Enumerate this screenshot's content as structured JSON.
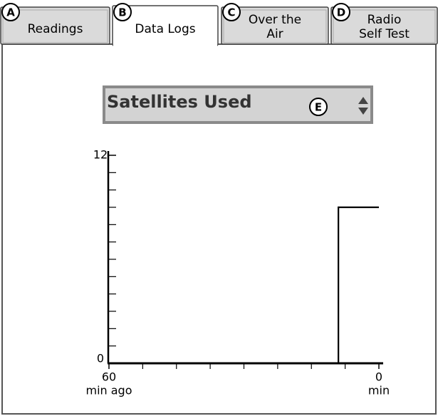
{
  "tabs": [
    {
      "callout": "A",
      "label_lines": [
        "Readings"
      ],
      "active": false
    },
    {
      "callout": "B",
      "label_lines": [
        "Data Logs"
      ],
      "active": true
    },
    {
      "callout": "C",
      "label_lines": [
        "Over the",
        "Air"
      ],
      "active": false
    },
    {
      "callout": "D",
      "label_lines": [
        "Radio",
        "Self Test"
      ],
      "active": false
    }
  ],
  "dropdown": {
    "label": "Satellites Used",
    "callout": "E"
  },
  "chart_data": {
    "type": "line",
    "x": [
      60,
      9,
      9,
      0
    ],
    "values": [
      0,
      0,
      9,
      9
    ],
    "color": "#000000",
    "xlim": [
      60,
      0
    ],
    "xticks": [
      60,
      0
    ],
    "xtick_units": [
      "min ago",
      "min"
    ],
    "xminor_ticks": [
      52.5,
      45,
      37.5,
      30,
      22.5,
      15,
      7.5
    ],
    "ylim": [
      0,
      12
    ],
    "yticks": [
      0,
      12
    ],
    "yminor_ticks": [
      1,
      2,
      3,
      4,
      5,
      6,
      7,
      8,
      9,
      10,
      11
    ]
  }
}
